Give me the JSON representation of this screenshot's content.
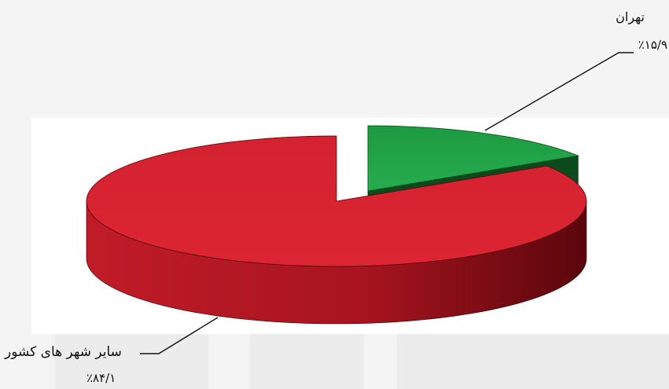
{
  "chart_data": {
    "type": "pie",
    "style": "3d-exploded",
    "title": "",
    "slices": [
      {
        "name": "تهران",
        "value": 15.9,
        "value_label": "٪۱۵/۹",
        "color": "#22a24a",
        "exploded": true
      },
      {
        "name": "سایر شهر های کشور",
        "value": 84.1,
        "value_label": "٪۸۴/۱",
        "color": "#d8222f",
        "exploded": false
      }
    ]
  }
}
